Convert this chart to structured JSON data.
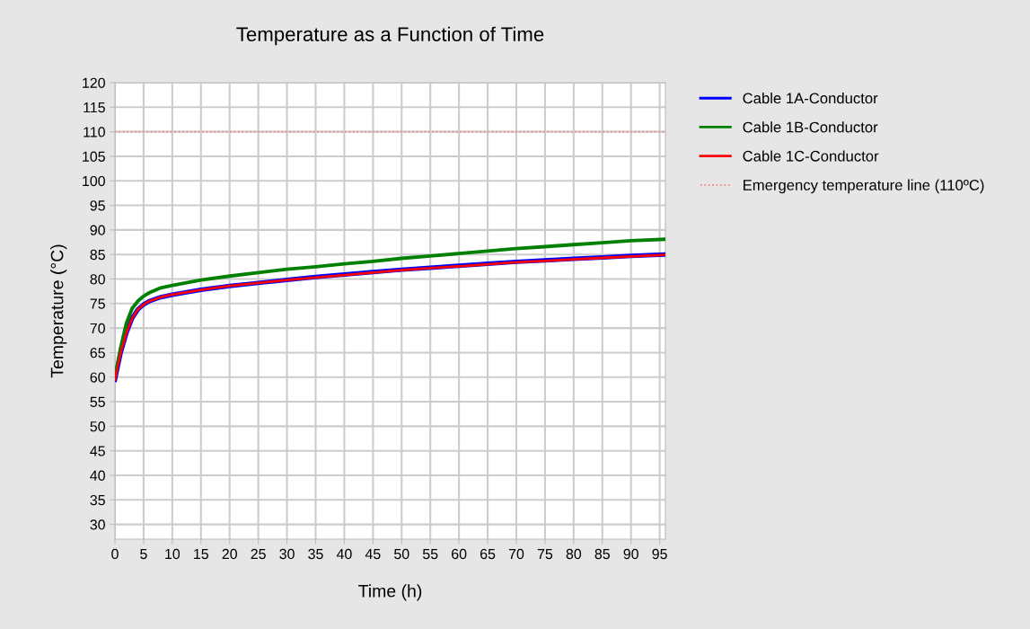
{
  "chart_data": {
    "type": "line",
    "title": "Temperature as a Function of Time",
    "xlabel": "Time (h)",
    "ylabel": "Temperature (°C)",
    "x": [
      0,
      1,
      2,
      3,
      4,
      5,
      6,
      8,
      10,
      15,
      20,
      25,
      30,
      35,
      40,
      45,
      50,
      55,
      60,
      65,
      70,
      75,
      80,
      85,
      90,
      96
    ],
    "series": [
      {
        "name": "Cable 1A-Conductor",
        "color": "#0000ff",
        "values": [
          59.5,
          65,
          69,
          72,
          73.8,
          74.8,
          75.5,
          76.3,
          76.8,
          77.8,
          78.6,
          79.2,
          79.8,
          80.4,
          80.9,
          81.4,
          81.9,
          82.3,
          82.7,
          83.1,
          83.5,
          83.8,
          84.1,
          84.4,
          84.7,
          85
        ]
      },
      {
        "name": "Cable 1B-Conductor",
        "color": "#008000",
        "values": [
          60,
          66,
          71,
          74,
          75.5,
          76.5,
          77.2,
          78.2,
          78.7,
          79.8,
          80.6,
          81.3,
          82,
          82.5,
          83.1,
          83.6,
          84.2,
          84.7,
          85.2,
          85.7,
          86.2,
          86.6,
          87,
          87.4,
          87.8,
          88.1
        ]
      },
      {
        "name": "Cable 1C-Conductor",
        "color": "#ff0000",
        "values": [
          59.5,
          65,
          69,
          72,
          73.8,
          74.8,
          75.5,
          76.3,
          76.8,
          77.8,
          78.6,
          79.2,
          79.8,
          80.3,
          80.8,
          81.3,
          81.8,
          82.2,
          82.6,
          83,
          83.4,
          83.7,
          84,
          84.3,
          84.6,
          84.9
        ]
      }
    ],
    "ref_lines": [
      {
        "axis": "y",
        "value": 110,
        "label": "Emergency temperature line (110ºC)",
        "color": "#f08080",
        "line_style": "dotted"
      }
    ],
    "xlim": [
      0,
      96
    ],
    "xticks": [
      0,
      5,
      10,
      15,
      20,
      25,
      30,
      35,
      40,
      45,
      50,
      55,
      60,
      65,
      70,
      75,
      80,
      85,
      90,
      95
    ],
    "ylim": [
      27,
      120
    ],
    "yticks": [
      30,
      35,
      40,
      45,
      50,
      55,
      60,
      65,
      70,
      75,
      80,
      85,
      90,
      95,
      100,
      105,
      110,
      115,
      120
    ],
    "grid": true,
    "legend": "right",
    "marker": "none",
    "line_style": "solid"
  }
}
